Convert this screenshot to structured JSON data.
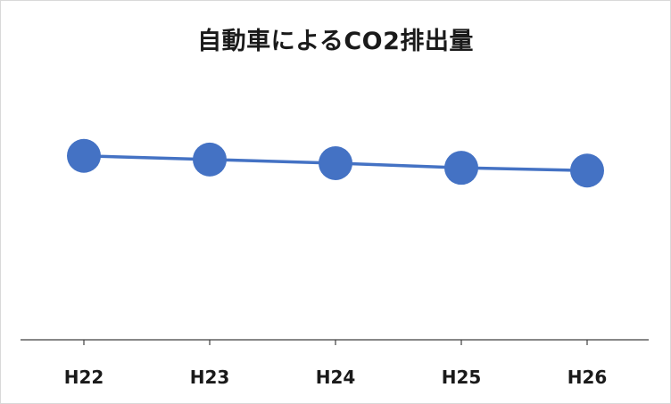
{
  "chart_data": {
    "type": "line",
    "title": "自動車によるCO2排出量",
    "categories": [
      "H22",
      "H23",
      "H24",
      "H25",
      "H26"
    ],
    "series": [
      {
        "values": [
          100,
          98,
          96,
          93.5,
          92
        ]
      }
    ],
    "ylim": [
      0,
      160
    ],
    "grid": false,
    "legend": "none",
    "colors": {
      "series": "#4472c4",
      "axis": "#404040",
      "text": "#1a1a1a"
    }
  }
}
